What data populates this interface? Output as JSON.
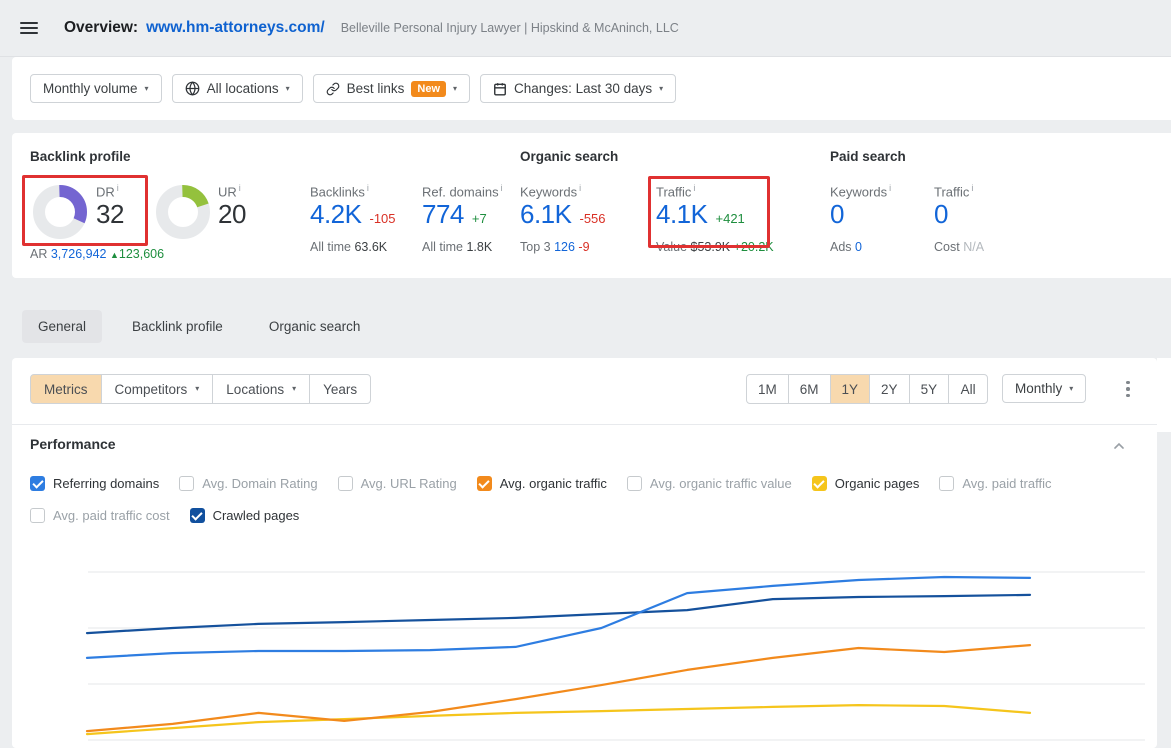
{
  "ui": {
    "caret": "▾",
    "info": "i",
    "up_arrow": "▲"
  },
  "colors": {
    "page_bg": "#eceef0",
    "card_bg": "#ffffff",
    "link_blue": "#0f62d0",
    "value_blue": "#1265d8",
    "positive_green": "#1e8e3e",
    "negative_red": "#d93025",
    "highlight_red": "#e03131",
    "new_badge_orange": "#f28a1c",
    "active_filter_tan": "#f8d9ae",
    "active_tab_gray": "#e3e4e7",
    "dr_donut_purple": "#7465d1",
    "ur_donut_green": "#94c13d",
    "line_referring_domains": "#2e7de1",
    "line_crawled_pages": "#15519c",
    "line_avg_organic_traffic": "#f28a1c",
    "line_organic_pages": "#f5c51c"
  },
  "header": {
    "title": "Overview:",
    "url": "www.hm-attorneys.com/",
    "subtitle": "Belleville Personal Injury Lawyer | Hipskind & McAninch, LLC"
  },
  "filter_bar": {
    "monthly_volume": "Monthly volume",
    "all_locations": "All locations",
    "best_links": "Best links",
    "best_links_badge": "New",
    "changes": "Changes: Last 30 days"
  },
  "metrics": {
    "backlink_profile": {
      "title": "Backlink profile",
      "dr": {
        "label": "DR",
        "value": "32",
        "percent": 32,
        "sub_label": "AR",
        "sub_value": "3,726,942",
        "sub_delta": "123,606"
      },
      "ur": {
        "label": "UR",
        "value": "20",
        "percent": 20
      },
      "backlinks": {
        "label": "Backlinks",
        "value": "4.2K",
        "delta": "-105",
        "sub_label": "All time",
        "sub_value": "63.6K"
      },
      "ref_domains": {
        "label": "Ref. domains",
        "value": "774",
        "delta": "+7",
        "sub_label": "All time",
        "sub_value": "1.8K"
      }
    },
    "organic_search": {
      "title": "Organic search",
      "keywords": {
        "label": "Keywords",
        "value": "6.1K",
        "delta": "-556",
        "sub_label": "Top 3",
        "sub_value": "126",
        "sub_delta": "-9"
      },
      "traffic": {
        "label": "Traffic",
        "value": "4.1K",
        "delta": "+421",
        "sub_label": "Value",
        "sub_value": "$53.9K",
        "sub_delta": "+20.2K"
      }
    },
    "paid_search": {
      "title": "Paid search",
      "keywords": {
        "label": "Keywords",
        "value": "0",
        "sub_label": "Ads",
        "sub_value": "0"
      },
      "traffic": {
        "label": "Traffic",
        "value": "0",
        "sub_label": "Cost",
        "sub_value": "N/A"
      }
    }
  },
  "tabs": {
    "items": [
      {
        "label": "General"
      },
      {
        "label": "Backlink profile"
      },
      {
        "label": "Organic search"
      }
    ],
    "active": "General"
  },
  "controls": {
    "segments": [
      "Metrics",
      "Competitors",
      "Locations",
      "Years"
    ],
    "active_segment": "Metrics",
    "ranges": [
      "1M",
      "6M",
      "1Y",
      "2Y",
      "5Y",
      "All"
    ],
    "active_range": "1Y",
    "interval": "Monthly"
  },
  "performance": {
    "title": "Performance",
    "legend_row1": [
      {
        "label": "Referring domains",
        "checked": true,
        "color": "#2e7de1"
      },
      {
        "label": "Avg. Domain Rating",
        "checked": false
      },
      {
        "label": "Avg. URL Rating",
        "checked": false
      },
      {
        "label": "Avg. organic traffic",
        "checked": true,
        "color": "#f28a1c"
      },
      {
        "label": "Avg. organic traffic value",
        "checked": false
      },
      {
        "label": "Organic pages",
        "checked": true,
        "color": "#f5c51c"
      },
      {
        "label": "Avg. paid traffic",
        "checked": false
      }
    ],
    "legend_row2": [
      {
        "label": "Avg. paid traffic cost",
        "checked": false
      },
      {
        "label": "Crawled pages",
        "checked": true,
        "color": "#11509e"
      }
    ]
  },
  "chart_data": {
    "type": "line",
    "title": "Performance",
    "x": [
      1,
      2,
      3,
      4,
      5,
      6,
      7,
      8,
      9,
      10,
      11,
      12
    ],
    "x_note": "12 monthly points over 1Y range; month tick labels cut off below visible area",
    "y_note": "relative scale 0-100, axis tick labels not visible in screenshot",
    "ylim": [
      0,
      100
    ],
    "grid": true,
    "legend_position": "checkbox toggles above chart",
    "series": [
      {
        "name": "Crawled pages",
        "color": "#15519c",
        "values": [
          61.7,
          63.9,
          65.7,
          66.5,
          67.4,
          68.3,
          70.0,
          71.7,
          76.5,
          77.4,
          77.8,
          78.3
        ]
      },
      {
        "name": "Referring domains",
        "color": "#2e7de1",
        "values": [
          50.9,
          53.0,
          53.9,
          53.9,
          54.3,
          55.7,
          63.9,
          79.1,
          82.2,
          84.8,
          86.1,
          85.7
        ]
      },
      {
        "name": "Avg. organic traffic",
        "color": "#f28a1c",
        "values": [
          19.1,
          22.2,
          27.0,
          23.5,
          27.4,
          33.0,
          39.1,
          45.7,
          50.9,
          55.2,
          53.5,
          56.5
        ]
      },
      {
        "name": "Organic pages",
        "color": "#f5c51c",
        "values": [
          17.8,
          20.4,
          23.0,
          24.3,
          25.7,
          27.0,
          27.8,
          28.7,
          29.6,
          30.4,
          30.0,
          27.0
        ]
      }
    ]
  }
}
